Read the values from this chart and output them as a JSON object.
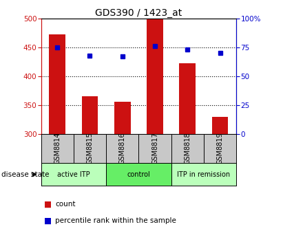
{
  "title": "GDS390 / 1423_at",
  "samples": [
    "GSM8814",
    "GSM8815",
    "GSM8816",
    "GSM8817",
    "GSM8818",
    "GSM8819"
  ],
  "counts": [
    472,
    365,
    356,
    500,
    422,
    330
  ],
  "percentile_ranks": [
    75,
    68,
    67,
    76,
    73,
    70
  ],
  "ylim_left": [
    300,
    500
  ],
  "ylim_right": [
    0,
    100
  ],
  "yticks_left": [
    300,
    350,
    400,
    450,
    500
  ],
  "yticks_right": [
    0,
    25,
    50,
    75,
    100
  ],
  "bar_color": "#cc1111",
  "dot_color": "#0000cc",
  "plot_bg_color": "#ffffff",
  "title_fontsize": 10,
  "groups": [
    {
      "label": "active ITP",
      "start": 0,
      "end": 2,
      "color": "#bbffbb"
    },
    {
      "label": "control",
      "start": 2,
      "end": 4,
      "color": "#66ee66"
    },
    {
      "label": "ITP in remission",
      "start": 4,
      "end": 6,
      "color": "#bbffbb"
    }
  ],
  "disease_state_label": "disease state",
  "legend_bar_label": "count",
  "legend_dot_label": "percentile rank within the sample",
  "bar_width": 0.5,
  "tick_bg_color": "#c8c8c8"
}
